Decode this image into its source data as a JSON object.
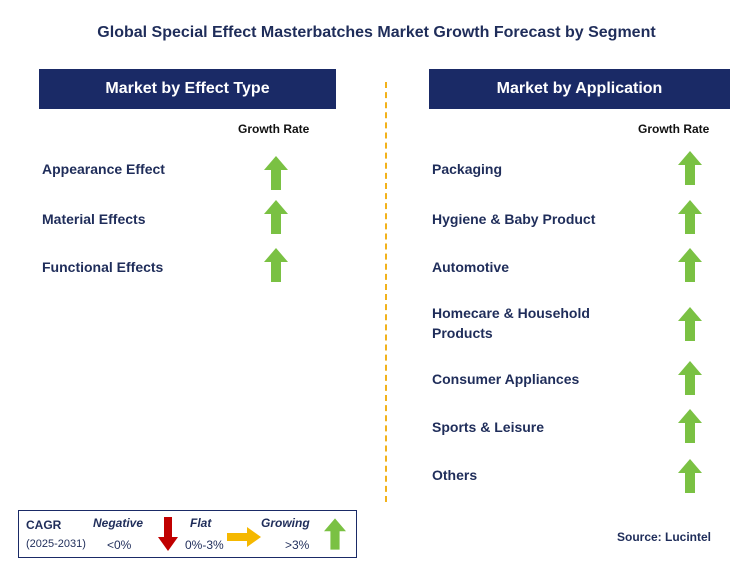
{
  "title": "Global Special Effect Masterbatches Market Growth Forecast by Segment",
  "left_panel": {
    "header": "Market by Effect Type",
    "rate_label": "Growth Rate",
    "items": [
      {
        "label": "Appearance Effect",
        "trend": "growing"
      },
      {
        "label": "Material Effects",
        "trend": "growing"
      },
      {
        "label": "Functional Effects",
        "trend": "growing"
      }
    ]
  },
  "right_panel": {
    "header": "Market by Application",
    "rate_label": "Growth Rate",
    "items": [
      {
        "label": "Packaging",
        "trend": "growing"
      },
      {
        "label": "Hygiene & Baby Product",
        "trend": "growing"
      },
      {
        "label": "Automotive",
        "trend": "growing"
      },
      {
        "label": "Homecare & Household Products",
        "trend": "growing"
      },
      {
        "label": "Consumer Appliances",
        "trend": "growing"
      },
      {
        "label": "Sports & Leisure",
        "trend": "growing"
      },
      {
        "label": "Others",
        "trend": "growing"
      }
    ]
  },
  "legend": {
    "cagr": "CAGR",
    "period": "(2025-2031)",
    "negative": {
      "label": "Negative",
      "range": "<0%",
      "color": "#c00000"
    },
    "flat": {
      "label": "Flat",
      "range": "0%-3%",
      "color": "#f5b800"
    },
    "growing": {
      "label": "Growing",
      "range": ">3%",
      "color": "#7ac143"
    }
  },
  "source": "Source: Lucintel",
  "colors": {
    "header_bg": "#1a2a66",
    "text": "#1f2d5a",
    "divider": "#f2b21b",
    "arrow_up": "#7ac143"
  }
}
